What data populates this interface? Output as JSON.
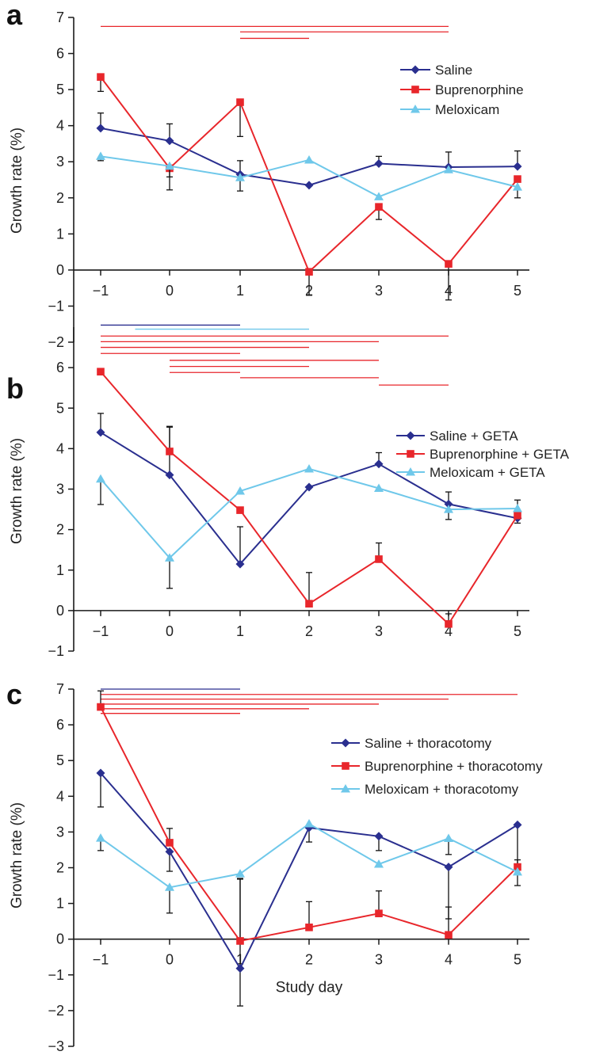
{
  "figure": {
    "shared_xlabel": "Study day"
  },
  "colors": {
    "saline": "#2a2f8f",
    "buprenorphine": "#e8262b",
    "meloxicam": "#6fc8ea",
    "axis": "#1a1a1a"
  },
  "chart_data": [
    {
      "type": "line",
      "panel_label": "a",
      "ylabel": "Growth rate (%)",
      "xlabel": "",
      "x": [
        -1,
        0,
        1,
        2,
        3,
        4,
        5
      ],
      "xticks": [
        "−1",
        "0",
        "1",
        "2",
        "3",
        "4",
        "5"
      ],
      "ylim": [
        -2,
        7
      ],
      "yticks": [
        "−2",
        "−1",
        "0",
        "1",
        "2",
        "3",
        "4",
        "5",
        "6",
        "7"
      ],
      "legend_placement": "top-right",
      "series": [
        {
          "name": "Saline",
          "color": "#2a2f8f",
          "marker": "diamond",
          "values": [
            3.93,
            3.58,
            2.65,
            2.35,
            2.95,
            2.85,
            2.87
          ],
          "error_up": [
            0.42,
            0.47,
            0.38,
            0,
            0.2,
            0.42,
            0.43
          ],
          "error_down": [
            0,
            0,
            0,
            0,
            0,
            0,
            0
          ]
        },
        {
          "name": "Buprenorphine",
          "color": "#e8262b",
          "marker": "square",
          "values": [
            5.35,
            2.82,
            4.65,
            -0.05,
            1.75,
            0.17,
            2.52
          ],
          "error_up": [
            0,
            0,
            0,
            0,
            0,
            0,
            0
          ],
          "error_down": [
            0.4,
            0.6,
            0.95,
            0.65,
            0.35,
            1.0,
            0.52
          ]
        },
        {
          "name": "Meloxicam",
          "color": "#6fc8ea",
          "marker": "triangle",
          "values": [
            3.15,
            2.88,
            2.56,
            3.05,
            2.03,
            2.78,
            2.3
          ],
          "error_up": [
            0,
            0,
            0,
            0,
            0,
            0,
            0
          ],
          "error_down": [
            0.12,
            0.3,
            0.37,
            0,
            0,
            0,
            0
          ]
        }
      ],
      "significance_bars": [
        {
          "color": "#e8262b",
          "from": -1,
          "to": 4,
          "y": 6.75
        },
        {
          "color": "#e8262b",
          "from": 1,
          "to": 4,
          "y": 6.6
        },
        {
          "color": "#e8262b",
          "from": 1,
          "to": 2,
          "y": 6.42
        }
      ]
    },
    {
      "type": "line",
      "panel_label": "b",
      "ylabel": "Growth rate (%)",
      "xlabel": "",
      "x": [
        -1,
        0,
        1,
        2,
        3,
        4,
        5
      ],
      "xticks": [
        "−1",
        "0",
        "1",
        "2",
        "3",
        "4",
        "5"
      ],
      "ylim": [
        -1,
        7
      ],
      "yticks": [
        "−1",
        "0",
        "1",
        "2",
        "3",
        "4",
        "5",
        "6"
      ],
      "legend_placement": "right",
      "series": [
        {
          "name": "Saline + GETA",
          "color": "#2a2f8f",
          "marker": "diamond",
          "values": [
            4.4,
            3.35,
            1.15,
            3.05,
            3.62,
            2.63,
            2.28
          ],
          "error_up": [
            0.47,
            1.2,
            0.92,
            0,
            0.28,
            0.3,
            0
          ],
          "error_down": [
            0,
            0,
            0,
            0,
            0,
            0,
            0.12
          ]
        },
        {
          "name": "Buprenorphine + GETA",
          "color": "#e8262b",
          "marker": "square",
          "values": [
            5.9,
            3.93,
            2.48,
            0.17,
            1.27,
            -0.33,
            2.35
          ],
          "error_up": [
            0,
            0.6,
            0,
            0.77,
            0.4,
            0.25,
            0.38
          ],
          "error_down": [
            0,
            0,
            0,
            0,
            0,
            0,
            0
          ]
        },
        {
          "name": "Meloxicam + GETA",
          "color": "#6fc8ea",
          "marker": "triangle",
          "values": [
            3.25,
            1.3,
            2.95,
            3.5,
            3.02,
            2.5,
            2.52
          ],
          "error_up": [
            0,
            0,
            0,
            0,
            0,
            0,
            0
          ],
          "error_down": [
            0.63,
            0.75,
            0,
            0,
            0,
            0.25,
            0
          ]
        }
      ],
      "significance_bars": [
        {
          "color": "#2a2f8f",
          "from": -1,
          "to": 1,
          "y": 7.05
        },
        {
          "color": "#6fc8ea",
          "from": -0.5,
          "to": 2,
          "y": 6.95
        },
        {
          "color": "#e8262b",
          "from": -1,
          "to": 4,
          "y": 6.78
        },
        {
          "color": "#e8262b",
          "from": -1,
          "to": 3,
          "y": 6.64
        },
        {
          "color": "#e8262b",
          "from": -1,
          "to": 2,
          "y": 6.5
        },
        {
          "color": "#e8262b",
          "from": -1,
          "to": 1,
          "y": 6.35
        },
        {
          "color": "#e8262b",
          "from": 0,
          "to": 3,
          "y": 6.18
        },
        {
          "color": "#e8262b",
          "from": 0,
          "to": 2,
          "y": 6.03
        },
        {
          "color": "#e8262b",
          "from": 0,
          "to": 1,
          "y": 5.88
        },
        {
          "color": "#e8262b",
          "from": 1,
          "to": 3,
          "y": 5.75
        },
        {
          "color": "#e8262b",
          "from": 3,
          "to": 4,
          "y": 5.57
        }
      ]
    },
    {
      "type": "line",
      "panel_label": "c",
      "ylabel": "Growth rate (%)",
      "xlabel": "Study day",
      "x": [
        -1,
        0,
        1,
        2,
        3,
        4,
        5
      ],
      "xticks": [
        "−1",
        "0",
        "1",
        "2",
        "3",
        "4",
        "5"
      ],
      "ylim": [
        -3,
        7
      ],
      "yticks": [
        "−3",
        "−2",
        "−1",
        "0",
        "1",
        "2",
        "3",
        "4",
        "5",
        "6",
        "7"
      ],
      "legend_placement": "right",
      "series": [
        {
          "name": "Saline + thoracotomy",
          "color": "#2a2f8f",
          "marker": "diamond",
          "values": [
            4.65,
            2.45,
            -0.82,
            3.12,
            2.88,
            2.02,
            3.2
          ],
          "error_up": [
            0,
            0,
            2.5,
            0,
            0,
            0,
            0
          ],
          "error_down": [
            0.95,
            0.55,
            1.05,
            0.4,
            0.4,
            1.45,
            1.2
          ]
        },
        {
          "name": "Buprenorphine + thoracotomy",
          "color": "#e8262b",
          "marker": "square",
          "values": [
            6.5,
            2.7,
            -0.05,
            0.33,
            0.72,
            0.12,
            2.02
          ],
          "error_up": [
            0.45,
            0.4,
            1.75,
            0.72,
            0.63,
            0.78,
            0.2
          ],
          "error_down": [
            0,
            0,
            0,
            0,
            0,
            0,
            0.52
          ]
        },
        {
          "name": "Meloxicam + thoracotomy",
          "color": "#6fc8ea",
          "marker": "triangle",
          "values": [
            2.83,
            1.45,
            1.83,
            3.23,
            2.1,
            2.82,
            1.88
          ],
          "error_up": [
            0,
            0,
            0,
            0,
            0,
            0,
            0
          ],
          "error_down": [
            0.35,
            0.72,
            0,
            0,
            0,
            0.45,
            0
          ]
        }
      ],
      "significance_bars": [
        {
          "color": "#2a2f8f",
          "from": -1,
          "to": 1,
          "y": 7.0
        },
        {
          "color": "#e8262b",
          "from": -1,
          "to": 5,
          "y": 6.85
        },
        {
          "color": "#e8262b",
          "from": -1,
          "to": 4,
          "y": 6.72
        },
        {
          "color": "#e8262b",
          "from": -1,
          "to": 3,
          "y": 6.58
        },
        {
          "color": "#e8262b",
          "from": -1,
          "to": 2,
          "y": 6.45
        },
        {
          "color": "#e8262b",
          "from": -1,
          "to": 1,
          "y": 6.32
        }
      ]
    }
  ]
}
